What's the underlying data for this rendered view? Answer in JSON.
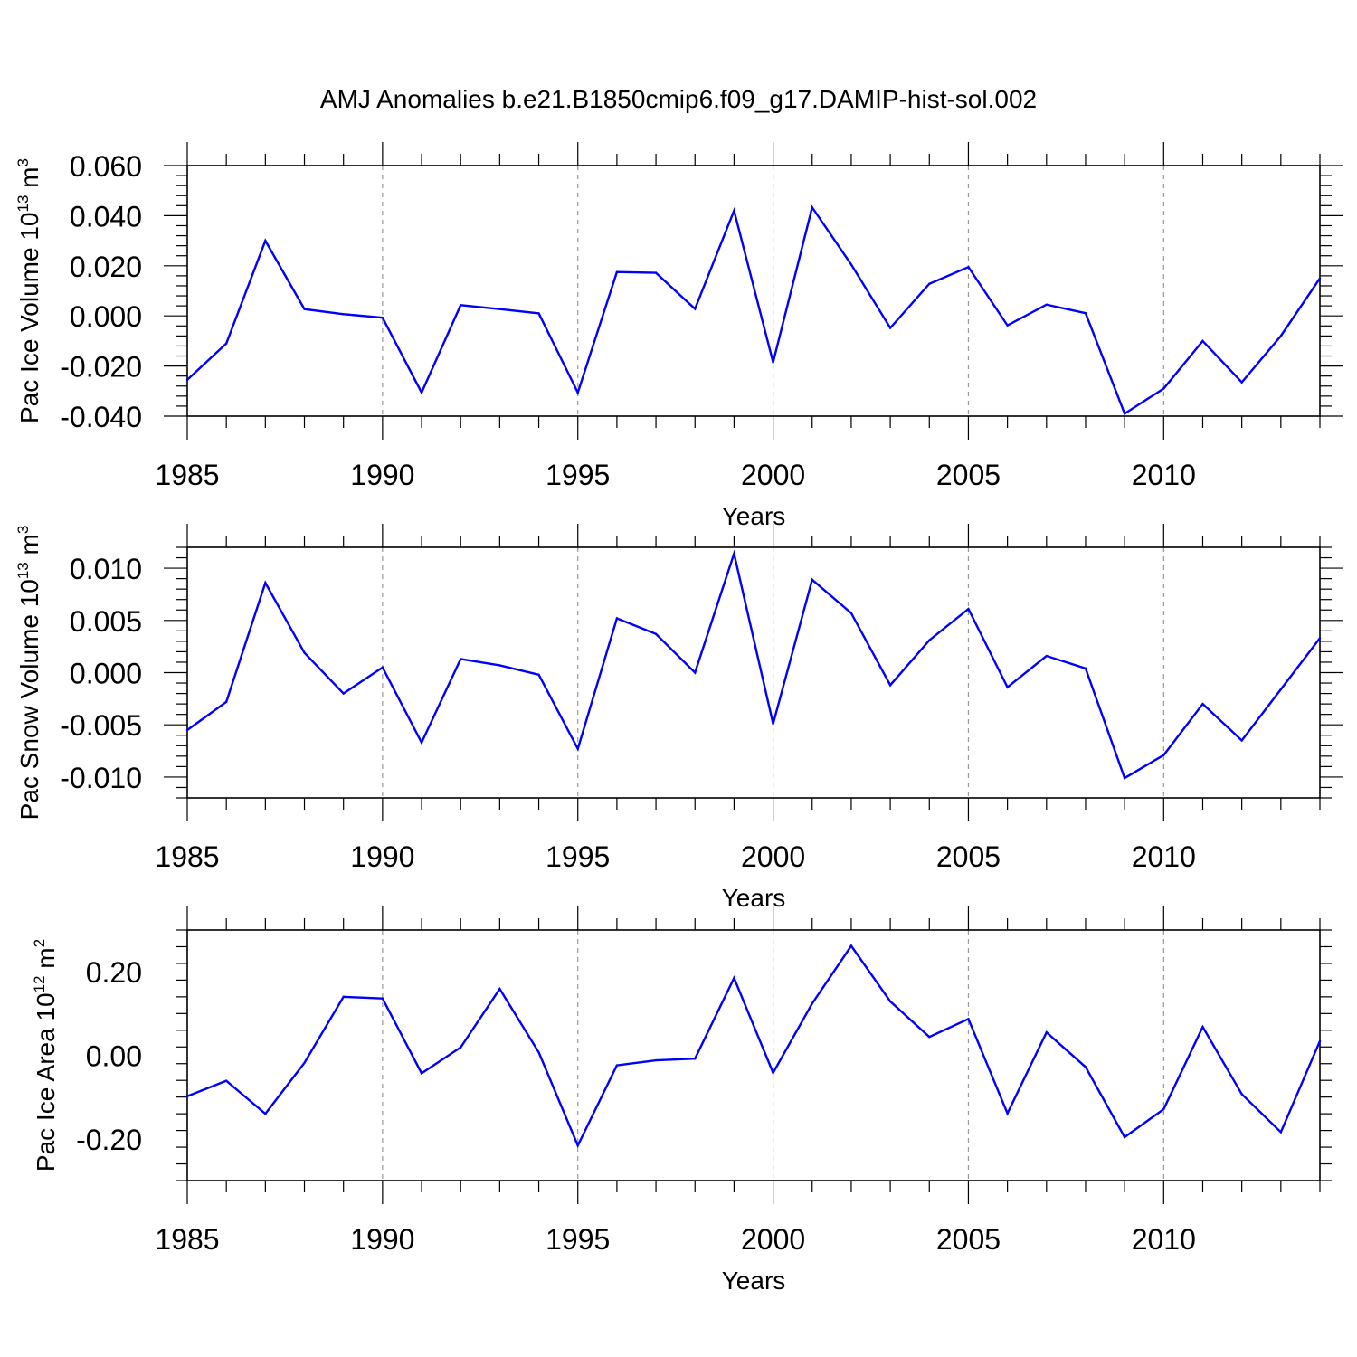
{
  "title": "AMJ Anomalies b.e21.B1850cmip6.f09_g17.DAMIP-hist-sol.002",
  "colors": {
    "line": "#0000ff",
    "frame": "#000000",
    "grid": "#999999"
  },
  "chart_data": [
    {
      "type": "line",
      "title": "AMJ Anomalies b.e21.B1850cmip6.f09_g17.DAMIP-hist-sol.002",
      "xlabel": "Years",
      "ylabel": {
        "prefix": "Pac Ice Volume 10",
        "exp": "13",
        "unit": " m",
        "unit_exp": "3"
      },
      "xlim": [
        1985,
        2014
      ],
      "ylim": [
        -0.04,
        0.06
      ],
      "xticks": [
        1985,
        1990,
        1995,
        2000,
        2005,
        2010
      ],
      "yticks": [
        -0.04,
        -0.02,
        0.0,
        0.02,
        0.04,
        0.06
      ],
      "ytick_labels": [
        "-0.040",
        "-0.020",
        "0.000",
        "0.020",
        "0.040",
        "0.060"
      ],
      "grid": "vertical dashed at major x ticks",
      "x": [
        1985,
        1986,
        1987,
        1988,
        1989,
        1990,
        1991,
        1992,
        1993,
        1994,
        1995,
        1996,
        1997,
        1998,
        1999,
        2000,
        2001,
        2002,
        2003,
        2004,
        2005,
        2006,
        2007,
        2008,
        2009,
        2010,
        2011,
        2012,
        2013,
        2014
      ],
      "values": [
        -0.0255,
        -0.011,
        0.03,
        0.0027,
        0.0007,
        -0.0007,
        -0.0306,
        0.0043,
        0.0027,
        0.001,
        -0.0306,
        0.0175,
        0.0172,
        0.0028,
        0.042,
        -0.0185,
        0.0433,
        0.0205,
        -0.0048,
        0.0128,
        0.0195,
        -0.0038,
        0.0045,
        0.0011,
        -0.039,
        -0.029,
        -0.01,
        -0.0265,
        -0.008,
        0.015
      ]
    },
    {
      "type": "line",
      "xlabel": "Years",
      "ylabel": {
        "prefix": "Pac Snow Volume 10",
        "exp": "13",
        "unit": " m",
        "unit_exp": "3"
      },
      "xlim": [
        1985,
        2014
      ],
      "ylim": [
        -0.012,
        0.012
      ],
      "xticks": [
        1985,
        1990,
        1995,
        2000,
        2005,
        2010
      ],
      "yticks": [
        -0.01,
        -0.005,
        0.0,
        0.005,
        0.01
      ],
      "ytick_labels": [
        "-0.010",
        "-0.005",
        "0.000",
        "0.005",
        "0.010"
      ],
      "grid": "vertical dashed at major x ticks",
      "x": [
        1985,
        1986,
        1987,
        1988,
        1989,
        1990,
        1991,
        1992,
        1993,
        1994,
        1995,
        1996,
        1997,
        1998,
        1999,
        2000,
        2001,
        2002,
        2003,
        2004,
        2005,
        2006,
        2007,
        2008,
        2009,
        2010,
        2011,
        2012,
        2013,
        2014
      ],
      "values": [
        -0.0055,
        -0.0028,
        0.0086,
        0.0019,
        -0.002,
        0.0005,
        -0.0067,
        0.0013,
        0.0007,
        -0.0002,
        -0.0073,
        0.0052,
        0.0037,
        0.0,
        0.0114,
        -0.0049,
        0.0089,
        0.0057,
        -0.0012,
        0.0031,
        0.0061,
        -0.0014,
        0.0016,
        0.0004,
        -0.0101,
        -0.0079,
        -0.003,
        -0.0065,
        -0.0016,
        0.0033
      ]
    },
    {
      "type": "line",
      "xlabel": "Years",
      "ylabel": {
        "prefix": "Pac Ice Area 10",
        "exp": "12",
        "unit": " m",
        "unit_exp": "2"
      },
      "xlim": [
        1985,
        2014
      ],
      "ylim": [
        -0.3,
        0.3
      ],
      "xticks": [
        1985,
        1990,
        1995,
        2000,
        2005,
        2010
      ],
      "yticks": [
        -0.2,
        0.0,
        0.2
      ],
      "ytick_labels": [
        "-0.20",
        "0.00",
        "0.20"
      ],
      "grid": "vertical dashed at major x ticks",
      "x": [
        1985,
        1986,
        1987,
        1988,
        1989,
        1990,
        1991,
        1992,
        1993,
        1994,
        1995,
        1996,
        1997,
        1998,
        1999,
        2000,
        2001,
        2002,
        2003,
        2004,
        2005,
        2006,
        2007,
        2008,
        2009,
        2010,
        2011,
        2012,
        2013,
        2014
      ],
      "values": [
        -0.098,
        -0.061,
        -0.14,
        -0.018,
        0.14,
        0.136,
        -0.043,
        0.019,
        0.159,
        0.007,
        -0.216,
        -0.024,
        -0.012,
        -0.008,
        0.185,
        -0.042,
        0.124,
        0.262,
        0.129,
        0.044,
        0.087,
        -0.139,
        0.055,
        -0.028,
        -0.196,
        -0.129,
        0.068,
        -0.093,
        -0.184,
        0.034
      ]
    }
  ]
}
